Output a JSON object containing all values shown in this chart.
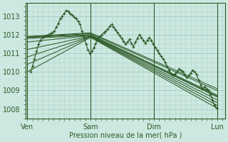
{
  "xlabel": "Pression niveau de la mer( hPa )",
  "bg_color": "#cce8e0",
  "plot_bg_color": "#cce8e0",
  "grid_minor_color": "#b0d4cc",
  "grid_major_color": "#9dc4bc",
  "line_color": "#2d5a27",
  "xtick_labels": [
    "Ven",
    "Sam",
    "Dim",
    "Lun"
  ],
  "xtick_positions": [
    0,
    96,
    192,
    288
  ],
  "ytick_labels": [
    "1008",
    "1009",
    "1010",
    "1011",
    "1012",
    "1013"
  ],
  "ylim": [
    1007.5,
    1013.7
  ],
  "xlim": [
    -2,
    300
  ],
  "fan_lines": [
    {
      "x0": 0,
      "y0": 1010.0,
      "x1": 96,
      "y1": 1011.85,
      "x2": 288,
      "y2": 1008.05
    },
    {
      "x0": 0,
      "y0": 1010.4,
      "x1": 96,
      "y1": 1011.88,
      "x2": 288,
      "y2": 1008.2
    },
    {
      "x0": 0,
      "y0": 1010.8,
      "x1": 96,
      "y1": 1011.9,
      "x2": 288,
      "y2": 1008.35
    },
    {
      "x0": 0,
      "y0": 1011.2,
      "x1": 96,
      "y1": 1011.92,
      "x2": 288,
      "y2": 1008.5
    },
    {
      "x0": 0,
      "y0": 1011.6,
      "x1": 96,
      "y1": 1011.95,
      "x2": 288,
      "y2": 1008.65
    },
    {
      "x0": 0,
      "y0": 1011.8,
      "x1": 96,
      "y1": 1011.95,
      "x2": 288,
      "y2": 1008.7
    },
    {
      "x0": 0,
      "y0": 1011.85,
      "x1": 96,
      "y1": 1012.0,
      "x2": 288,
      "y2": 1008.75
    },
    {
      "x0": 0,
      "y0": 1011.87,
      "x1": 96,
      "y1": 1012.05,
      "x2": 288,
      "y2": 1009.0
    },
    {
      "x0": 0,
      "y0": 1011.9,
      "x1": 96,
      "y1": 1012.1,
      "x2": 288,
      "y2": 1009.1
    }
  ],
  "detail_series": {
    "x": [
      5,
      8,
      11,
      14,
      17,
      20,
      23,
      26,
      29,
      32,
      35,
      38,
      41,
      44,
      47,
      50,
      53,
      56,
      59,
      62,
      65,
      68,
      71,
      74,
      77,
      80,
      83,
      86,
      89,
      92,
      95,
      98,
      101,
      104,
      107,
      110,
      113,
      116,
      119,
      122,
      125,
      128,
      131,
      134,
      137,
      140,
      143,
      146,
      149,
      152,
      155,
      158,
      161,
      164,
      167,
      170,
      173,
      176,
      179,
      182,
      185,
      188,
      191,
      194,
      197,
      200,
      203,
      206,
      209,
      212,
      215,
      218,
      221,
      224,
      227,
      230,
      233,
      236,
      239,
      242,
      245,
      248,
      251,
      254,
      257,
      260,
      263,
      266,
      269,
      272,
      275,
      278,
      281,
      284,
      287
    ],
    "y": [
      1010.0,
      1010.3,
      1010.7,
      1011.1,
      1011.5,
      1011.7,
      1011.85,
      1011.9,
      1011.95,
      1012.0,
      1012.05,
      1012.1,
      1012.2,
      1012.4,
      1012.6,
      1012.85,
      1013.0,
      1013.15,
      1013.3,
      1013.25,
      1013.15,
      1013.05,
      1012.95,
      1012.85,
      1012.7,
      1012.55,
      1012.2,
      1011.85,
      1011.5,
      1011.2,
      1011.0,
      1011.1,
      1011.3,
      1011.55,
      1011.75,
      1011.9,
      1012.0,
      1012.1,
      1012.2,
      1012.3,
      1012.45,
      1012.55,
      1012.4,
      1012.25,
      1012.1,
      1011.95,
      1011.8,
      1011.65,
      1011.5,
      1011.6,
      1011.75,
      1011.55,
      1011.35,
      1011.6,
      1011.8,
      1012.0,
      1011.85,
      1011.7,
      1011.55,
      1011.7,
      1011.85,
      1011.7,
      1011.5,
      1011.3,
      1011.15,
      1011.0,
      1010.85,
      1010.7,
      1010.5,
      1010.3,
      1010.1,
      1009.9,
      1009.8,
      1009.9,
      1010.0,
      1010.15,
      1010.1,
      1010.0,
      1009.85,
      1009.7,
      1009.8,
      1009.95,
      1010.1,
      1010.0,
      1009.85,
      1009.55,
      1009.3,
      1009.1,
      1009.2,
      1009.1,
      1009.0,
      1008.8,
      1008.5,
      1008.2,
      1008.05
    ]
  }
}
